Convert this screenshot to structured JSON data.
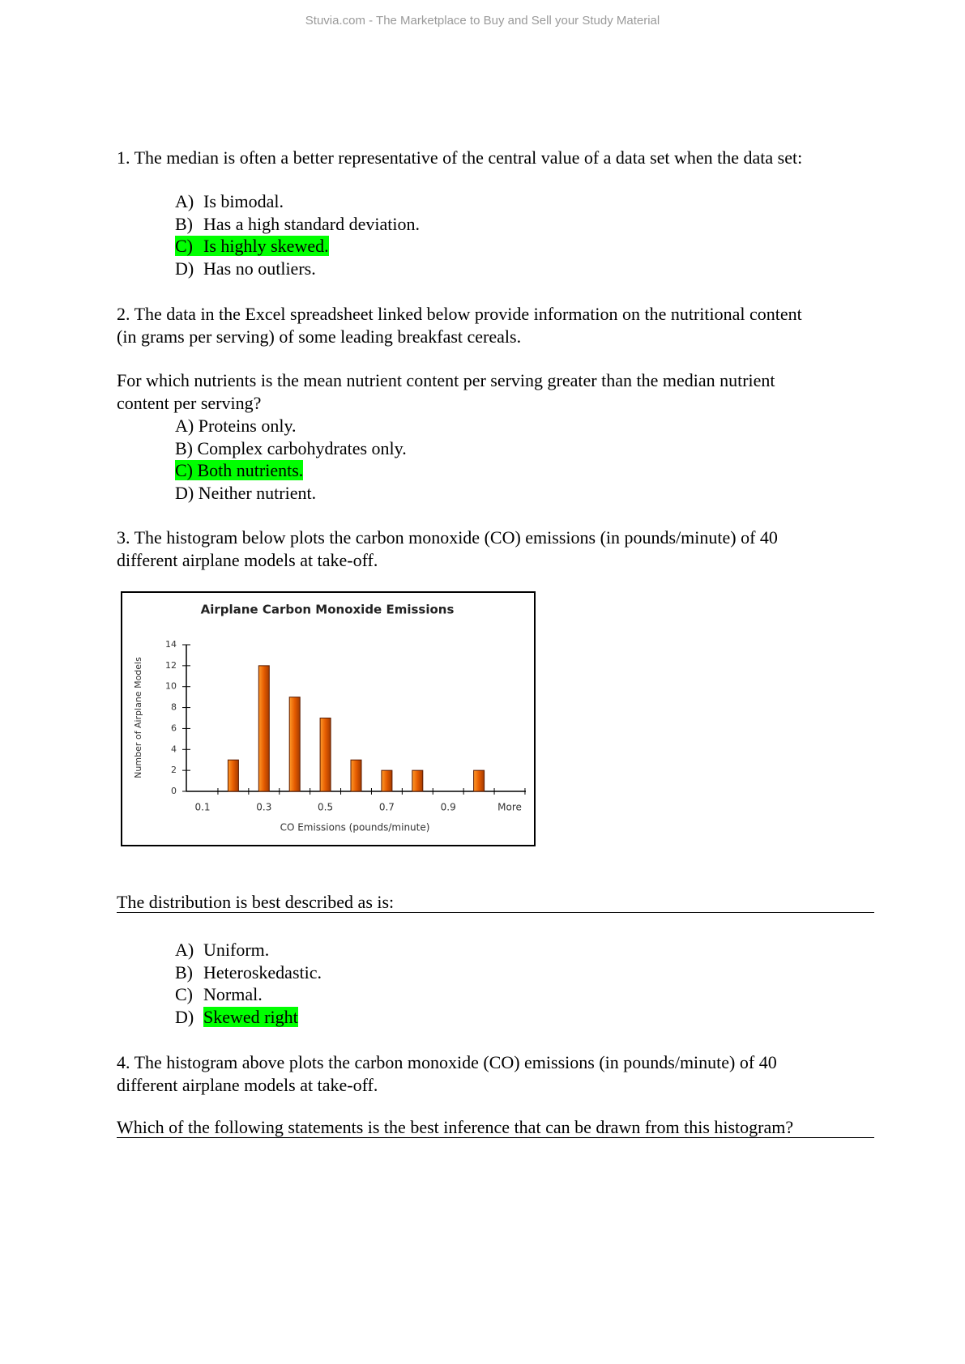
{
  "header": "Stuvia.com - The Marketplace to Buy and Sell your Study Material",
  "questions": [
    {
      "text": [
        "1. The median is often a better representative of the central value of a data set when the data set:"
      ],
      "options": [
        {
          "label": "A)",
          "text": "Is bimodal."
        },
        {
          "label": "B)",
          "text": "Has a high standard deviation."
        },
        {
          "label": "C)",
          "text": "Is highly skewed.",
          "highlight": "all"
        },
        {
          "label": "D)",
          "text": "Has no outliers."
        }
      ]
    },
    {
      "text": [
        "2. The data in the Excel spreadsheet linked below provide information on the nutritional content",
        "(in grams per serving) of some leading breakfast cereals."
      ],
      "prompt": [
        "For which nutrients is the mean nutrient content per serving greater than the median nutrient",
        "content per serving?"
      ],
      "options": [
        {
          "label": "A)",
          "text": "Proteins only."
        },
        {
          "label": "B)",
          "text": "Complex carbohydrates only."
        },
        {
          "label": "C)",
          "text": "Both nutrients.",
          "highlight": "all"
        },
        {
          "label": "D)",
          "text": "Neither nutrient."
        }
      ]
    },
    {
      "text": [
        "3. The histogram below plots the carbon monoxide (CO) emissions (in pounds/minute) of 40",
        "different airplane models at take-off."
      ],
      "prompt": [
        "The distribution is best described as is:"
      ],
      "options": [
        {
          "label": "A)",
          "text": "Uniform."
        },
        {
          "label": "B)",
          "text": "Heteroskedastic."
        },
        {
          "label": "C)",
          "text": "Normal."
        },
        {
          "label": "D)",
          "text": "Skewed right",
          "highlight": "text"
        }
      ]
    },
    {
      "text": [
        "4. The histogram above plots the carbon monoxide (CO) emissions (in pounds/minute) of 40",
        "different airplane models at take-off."
      ],
      "prompt": [
        "Which of the following statements is the best inference that can be drawn from this histogram?"
      ]
    }
  ],
  "chart_data": {
    "type": "bar",
    "title": "Airplane Carbon Monoxide Emissions",
    "x_label": "CO Emissions (pounds/minute)",
    "y_label": "Number of Airplane Models",
    "categories": [
      "0.1",
      null,
      "0.3",
      null,
      "0.5",
      null,
      "0.7",
      null,
      "0.9",
      null,
      "More"
    ],
    "values": [
      0,
      3,
      12,
      9,
      7,
      3,
      2,
      2,
      0,
      2,
      0
    ],
    "color": "#e65c00",
    "ylim": [
      0,
      14
    ],
    "yticks": [
      0,
      2,
      4,
      6,
      8,
      10,
      12,
      14
    ]
  }
}
